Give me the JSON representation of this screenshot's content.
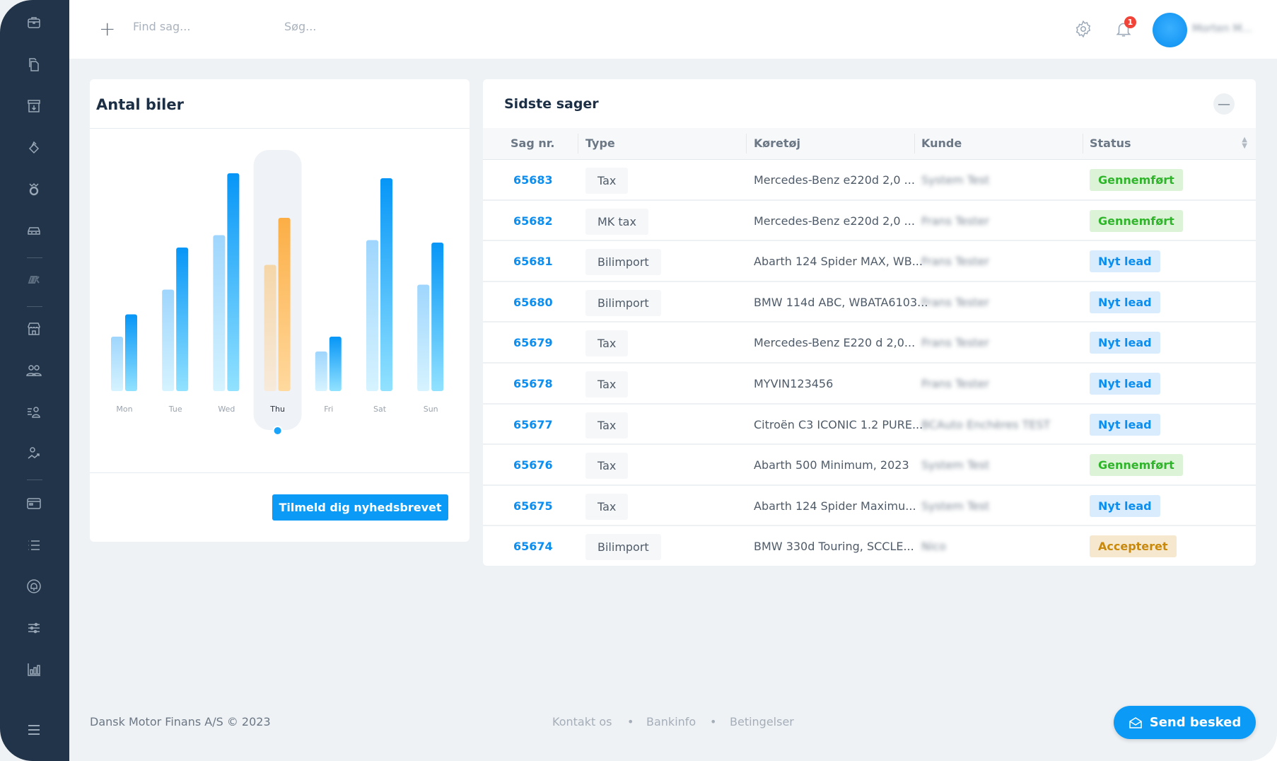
{
  "header": {
    "find_placeholder": "Find sag...",
    "search_placeholder": "Søg...",
    "notification_count": "1",
    "user_name": "Morten M..."
  },
  "sidebar": {
    "icons": [
      "briefcase-icon",
      "documents-icon",
      "archive-icon",
      "tag-icon",
      "crown-icon",
      "car-icon",
      "brand-logo-icon",
      "store-icon",
      "users-icon",
      "user-list-icon",
      "user-growth-icon",
      "credit-card-icon",
      "list-icon",
      "bell-circle-icon",
      "sliders-icon",
      "bar-chart-icon",
      "menu-icon"
    ]
  },
  "chart_card": {
    "title": "Antal biler",
    "newsletter_button": "Tilmeld dig nyhedsbrevet"
  },
  "chart_data": {
    "type": "bar",
    "categories": [
      "Mon",
      "Tue",
      "Wed",
      "Thu",
      "Fri",
      "Sat",
      "Sun"
    ],
    "series": [
      {
        "values": [
          22,
          41,
          63,
          51,
          16,
          61,
          43
        ]
      },
      {
        "values": [
          31,
          58,
          88,
          70,
          22,
          86,
          60
        ]
      }
    ],
    "highlighted": "Thu",
    "colors": {
      "primary": "#0b9af5",
      "highlight": "#fbb04a"
    },
    "axes_visible": false
  },
  "cases": {
    "title": "Sidste sager",
    "columns": [
      "Sag nr.",
      "Type",
      "Køretøj",
      "Kunde",
      "Status"
    ],
    "rows": [
      {
        "id": "65683",
        "type": "Tax",
        "vehicle": "Mercedes-Benz e220d 2,0 ...",
        "customer": "System Test",
        "status": "Gennemført",
        "kind": "done"
      },
      {
        "id": "65682",
        "type": "MK tax",
        "vehicle": "Mercedes-Benz e220d 2,0 ...",
        "customer": "Frans Tester",
        "status": "Gennemført",
        "kind": "done"
      },
      {
        "id": "65681",
        "type": "Bilimport",
        "vehicle": "Abarth 124 Spider MAX, WB...",
        "customer": "Frans Tester",
        "status": "Nyt lead",
        "kind": "new"
      },
      {
        "id": "65680",
        "type": "Bilimport",
        "vehicle": "BMW 114d ABC, WBATA6103...",
        "customer": "Frans Tester",
        "status": "Nyt lead",
        "kind": "new"
      },
      {
        "id": "65679",
        "type": "Tax",
        "vehicle": "Mercedes-Benz E220 d 2,0...",
        "customer": "Frans Tester",
        "status": "Nyt lead",
        "kind": "new"
      },
      {
        "id": "65678",
        "type": "Tax",
        "vehicle": "MYVIN123456",
        "customer": "Frans Tester",
        "status": "Nyt lead",
        "kind": "new"
      },
      {
        "id": "65677",
        "type": "Tax",
        "vehicle": "Citroën C3 ICONIC 1.2 PURE...",
        "customer": "BCAuto Enchères TEST",
        "status": "Nyt lead",
        "kind": "new"
      },
      {
        "id": "65676",
        "type": "Tax",
        "vehicle": "Abarth 500 Minimum, 2023",
        "customer": "System Test",
        "status": "Gennemført",
        "kind": "done"
      },
      {
        "id": "65675",
        "type": "Tax",
        "vehicle": "Abarth 124 Spider Maximu...",
        "customer": "System Test",
        "status": "Nyt lead",
        "kind": "new"
      },
      {
        "id": "65674",
        "type": "Bilimport",
        "vehicle": "BMW 330d Touring, SCCLE...",
        "customer": "Nico",
        "status": "Accepteret",
        "kind": "accepted"
      }
    ],
    "status_colors": {
      "done": {
        "bg": "#dcf3d8",
        "fg": "#2fb52a"
      },
      "new": {
        "bg": "#d9ecfd",
        "fg": "#0b8ef0"
      },
      "accepted": {
        "bg": "#f6e8cf",
        "fg": "#c8890c"
      }
    }
  },
  "footer": {
    "copyright": "Dansk Motor Finans A/S © 2023",
    "links": [
      "Kontakt os",
      "Bankinfo",
      "Betingelser"
    ],
    "send_button": "Send besked"
  }
}
